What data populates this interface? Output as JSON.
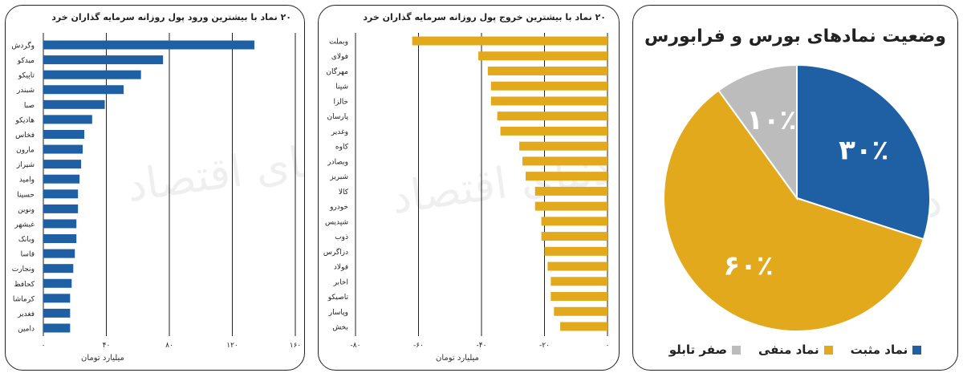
{
  "chart_data": [
    {
      "type": "bar",
      "orientation": "horizontal",
      "title": "۲۰ نماد با بیشترین ورود پول روزانه سرمایه گذاران خرد",
      "xlabel": "میلیارد تومان",
      "xlim": [
        0,
        160
      ],
      "xticks": [
        0,
        40,
        80,
        120,
        160
      ],
      "xtick_labels": [
        "۰",
        "۴۰",
        "۸۰",
        "۱۲۰",
        "۱۶۰"
      ],
      "grid": true,
      "color": "#1f5fa3",
      "categories": [
        "وگردش",
        "میدکو",
        "تاپیکو",
        "شبندر",
        "صبا",
        "هادیکو",
        "فخاس",
        "مارون",
        "شیراز",
        "وامید",
        "حسینا",
        "ونوین",
        "غبشهر",
        "وبانک",
        "قاسا",
        "ونجارت",
        "کحافظ",
        "کرماشا",
        "فغدیر",
        "دامین"
      ],
      "values": [
        134,
        76,
        62,
        51,
        39,
        31,
        26,
        25,
        24,
        23,
        22,
        22,
        21,
        21,
        20,
        19,
        18,
        17,
        17,
        17
      ]
    },
    {
      "type": "bar",
      "orientation": "horizontal",
      "title": "۲۰ نماد با بیشترین خروج پول روزانه سرمایه گذاران خرد",
      "xlabel": "میلیارد تومان",
      "xlim": [
        -80,
        0
      ],
      "xticks": [
        -80,
        -60,
        -40,
        -20,
        0
      ],
      "xtick_labels": [
        "-۸۰",
        "-۶۰",
        "-۴۰",
        "-۲۰",
        "۰"
      ],
      "grid": true,
      "color": "#e3a91c",
      "categories": [
        "وبملت",
        "فولای",
        "مهرگان",
        "شپنا",
        "خالزا",
        "پارسان",
        "وغدیر",
        "کاوه",
        "وبصادر",
        "شبریز",
        "کالا",
        "خودرو",
        "شپدیس",
        "ذوب",
        "دزاگرس",
        "فولاد",
        "اخابر",
        "تاصیکو",
        "وپاسار",
        "بخش"
      ],
      "values": [
        -62,
        -41,
        -38,
        -37,
        -37,
        -35,
        -34,
        -28,
        -27,
        -26,
        -23,
        -23,
        -21,
        -21,
        -20,
        -19,
        -18,
        -18,
        -17,
        -15
      ]
    },
    {
      "type": "pie",
      "title": "وضعیت نمادهای بورس و فرابورس",
      "labels": [
        "نماد مثبت",
        "نماد منفی",
        "صفر تابلو"
      ],
      "values": [
        30,
        60,
        10
      ],
      "value_labels": [
        "۳۰٪",
        "۶۰٪",
        "۱۰٪"
      ],
      "colors": [
        "#1f5fa3",
        "#e3a91c",
        "#bcbcbc"
      ],
      "legend_position": "bottom"
    }
  ],
  "watermark": "دنیای اقتصاد"
}
